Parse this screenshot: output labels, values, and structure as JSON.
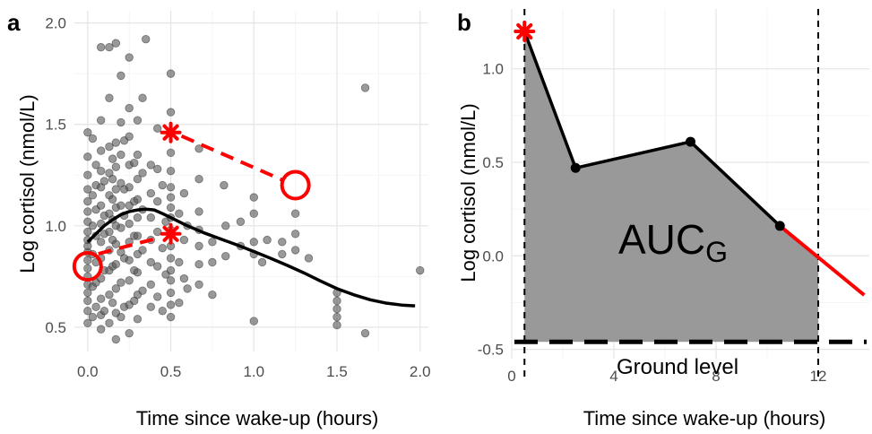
{
  "chart_data": [
    {
      "panel": "a",
      "type": "scatter",
      "xlabel": "Time since wake-up (hours)",
      "ylabel": "Log cortisol (nmol/L)",
      "xlim": [
        -0.08,
        2.05
      ],
      "ylim": [
        0.38,
        2.06
      ],
      "xticks": [
        0.0,
        0.5,
        1.0,
        1.5,
        2.0
      ],
      "xtick_labels": [
        "0.0",
        "0.5",
        "1.0",
        "1.5",
        "2.0"
      ],
      "yticks": [
        0.5,
        1.0,
        1.5,
        2.0
      ],
      "ytick_labels": [
        "0.5",
        "1.0",
        "1.5",
        "2.0"
      ],
      "grid": true,
      "point_color": "#555555",
      "curve_color": "#000000",
      "highlight_color": "#ff0000",
      "points": [
        [
          0.0,
          0.52
        ],
        [
          0.0,
          0.58
        ],
        [
          0.0,
          0.63
        ],
        [
          0.0,
          0.67
        ],
        [
          0.0,
          0.71
        ],
        [
          0.0,
          0.75
        ],
        [
          0.0,
          0.79
        ],
        [
          0.0,
          0.83
        ],
        [
          0.0,
          0.87
        ],
        [
          0.0,
          0.9
        ],
        [
          0.0,
          0.93
        ],
        [
          0.0,
          0.97
        ],
        [
          0.0,
          1.02
        ],
        [
          0.0,
          1.07
        ],
        [
          0.0,
          1.12
        ],
        [
          0.0,
          1.18
        ],
        [
          0.0,
          1.25
        ],
        [
          0.0,
          1.34
        ],
        [
          0.0,
          1.46
        ],
        [
          0.03,
          0.55
        ],
        [
          0.03,
          0.7
        ],
        [
          0.03,
          0.86
        ],
        [
          0.03,
          1.0
        ],
        [
          0.03,
          1.15
        ],
        [
          0.03,
          1.43
        ],
        [
          0.05,
          0.6
        ],
        [
          0.05,
          0.72
        ],
        [
          0.05,
          0.82
        ],
        [
          0.05,
          0.95
        ],
        [
          0.05,
          1.08
        ],
        [
          0.05,
          1.2
        ],
        [
          0.05,
          1.3
        ],
        [
          0.08,
          0.49
        ],
        [
          0.08,
          0.56
        ],
        [
          0.08,
          0.64
        ],
        [
          0.08,
          0.74
        ],
        [
          0.08,
          0.84
        ],
        [
          0.08,
          0.92
        ],
        [
          0.08,
          1.01
        ],
        [
          0.08,
          1.1
        ],
        [
          0.08,
          1.19
        ],
        [
          0.08,
          1.27
        ],
        [
          0.08,
          1.37
        ],
        [
          0.08,
          1.52
        ],
        [
          0.08,
          1.88
        ],
        [
          0.1,
          0.58
        ],
        [
          0.1,
          0.78
        ],
        [
          0.1,
          0.96
        ],
        [
          0.1,
          1.05
        ],
        [
          0.1,
          1.22
        ],
        [
          0.13,
          0.52
        ],
        [
          0.13,
          0.66
        ],
        [
          0.13,
          0.78
        ],
        [
          0.13,
          0.88
        ],
        [
          0.13,
          0.97
        ],
        [
          0.13,
          1.06
        ],
        [
          0.13,
          1.15
        ],
        [
          0.13,
          1.26
        ],
        [
          0.13,
          1.39
        ],
        [
          0.13,
          1.63
        ],
        [
          0.13,
          1.88
        ],
        [
          0.15,
          0.62
        ],
        [
          0.15,
          0.8
        ],
        [
          0.15,
          0.93
        ],
        [
          0.15,
          1.03
        ],
        [
          0.15,
          1.13
        ],
        [
          0.15,
          1.23
        ],
        [
          0.15,
          1.33
        ],
        [
          0.17,
          0.44
        ],
        [
          0.17,
          0.57
        ],
        [
          0.17,
          0.69
        ],
        [
          0.17,
          0.81
        ],
        [
          0.17,
          0.91
        ],
        [
          0.17,
          1.0
        ],
        [
          0.17,
          1.09
        ],
        [
          0.17,
          1.18
        ],
        [
          0.17,
          1.29
        ],
        [
          0.17,
          1.41
        ],
        [
          0.17,
          1.9
        ],
        [
          0.2,
          0.55
        ],
        [
          0.2,
          0.72
        ],
        [
          0.2,
          0.87
        ],
        [
          0.2,
          0.99
        ],
        [
          0.2,
          1.1
        ],
        [
          0.2,
          1.21
        ],
        [
          0.2,
          1.35
        ],
        [
          0.2,
          1.51
        ],
        [
          0.2,
          1.74
        ],
        [
          0.22,
          0.6
        ],
        [
          0.22,
          0.84
        ],
        [
          0.22,
          1.05
        ],
        [
          0.22,
          1.18
        ],
        [
          0.22,
          1.42
        ],
        [
          0.25,
          0.47
        ],
        [
          0.25,
          0.61
        ],
        [
          0.25,
          0.73
        ],
        [
          0.25,
          0.83
        ],
        [
          0.25,
          0.92
        ],
        [
          0.25,
          1.01
        ],
        [
          0.25,
          1.1
        ],
        [
          0.25,
          1.19
        ],
        [
          0.25,
          1.3
        ],
        [
          0.25,
          1.44
        ],
        [
          0.25,
          1.58
        ],
        [
          0.25,
          1.83
        ],
        [
          0.28,
          0.63
        ],
        [
          0.28,
          0.78
        ],
        [
          0.28,
          0.95
        ],
        [
          0.28,
          1.12
        ],
        [
          0.28,
          1.31
        ],
        [
          0.3,
          0.54
        ],
        [
          0.3,
          0.66
        ],
        [
          0.3,
          0.77
        ],
        [
          0.3,
          0.86
        ],
        [
          0.3,
          0.95
        ],
        [
          0.3,
          1.04
        ],
        [
          0.3,
          1.13
        ],
        [
          0.3,
          1.23
        ],
        [
          0.3,
          1.35
        ],
        [
          0.3,
          1.52
        ],
        [
          0.33,
          0.68
        ],
        [
          0.33,
          0.88
        ],
        [
          0.33,
          1.08
        ],
        [
          0.33,
          1.26
        ],
        [
          0.33,
          1.63
        ],
        [
          0.35,
          1.92
        ],
        [
          0.38,
          0.6
        ],
        [
          0.38,
          0.71
        ],
        [
          0.38,
          0.82
        ],
        [
          0.38,
          0.93
        ],
        [
          0.38,
          1.04
        ],
        [
          0.38,
          1.16
        ],
        [
          0.38,
          1.3
        ],
        [
          0.42,
          0.65
        ],
        [
          0.42,
          0.8
        ],
        [
          0.42,
          0.97
        ],
        [
          0.42,
          1.12
        ],
        [
          0.42,
          1.28
        ],
        [
          0.42,
          1.48
        ],
        [
          0.45,
          0.58
        ],
        [
          0.45,
          0.89
        ],
        [
          0.45,
          1.2
        ],
        [
          0.47,
          0.76
        ],
        [
          0.47,
          1.02
        ],
        [
          0.5,
          0.55
        ],
        [
          0.5,
          0.61
        ],
        [
          0.5,
          0.67
        ],
        [
          0.5,
          0.73
        ],
        [
          0.5,
          0.78
        ],
        [
          0.5,
          0.84
        ],
        [
          0.5,
          0.9
        ],
        [
          0.5,
          0.98
        ],
        [
          0.5,
          1.04
        ],
        [
          0.5,
          1.09
        ],
        [
          0.5,
          1.14
        ],
        [
          0.5,
          1.19
        ],
        [
          0.5,
          1.27
        ],
        [
          0.5,
          1.36
        ],
        [
          0.5,
          1.56
        ],
        [
          0.5,
          1.75
        ],
        [
          0.55,
          0.62
        ],
        [
          0.55,
          0.82
        ],
        [
          0.55,
          1.06
        ],
        [
          0.58,
          0.74
        ],
        [
          0.58,
          0.93
        ],
        [
          0.58,
          1.16
        ],
        [
          0.6,
          0.69
        ],
        [
          0.6,
          1.0
        ],
        [
          0.67,
          1.38
        ],
        [
          0.67,
          1.23
        ],
        [
          0.67,
          1.07
        ],
        [
          0.67,
          0.98
        ],
        [
          0.67,
          0.9
        ],
        [
          0.67,
          0.81
        ],
        [
          0.67,
          0.71
        ],
        [
          0.75,
          0.92
        ],
        [
          0.75,
          0.82
        ],
        [
          0.75,
          0.66
        ],
        [
          0.82,
          1.2
        ],
        [
          0.83,
          1.0
        ],
        [
          0.83,
          0.85
        ],
        [
          0.92,
          1.02
        ],
        [
          0.92,
          0.9
        ],
        [
          1.0,
          1.14
        ],
        [
          1.0,
          1.06
        ],
        [
          1.0,
          0.92
        ],
        [
          1.0,
          0.86
        ],
        [
          1.0,
          0.53
        ],
        [
          1.05,
          0.82
        ],
        [
          1.08,
          0.93
        ],
        [
          1.17,
          0.92
        ],
        [
          1.17,
          0.86
        ],
        [
          1.25,
          1.06
        ],
        [
          1.25,
          0.96
        ],
        [
          1.25,
          0.88
        ],
        [
          1.33,
          0.84
        ],
        [
          1.5,
          0.67
        ],
        [
          1.5,
          0.63
        ],
        [
          1.5,
          0.59
        ],
        [
          1.5,
          0.55
        ],
        [
          1.5,
          0.51
        ],
        [
          1.67,
          1.68
        ],
        [
          1.67,
          0.47
        ],
        [
          2.0,
          0.78
        ]
      ],
      "curve": [
        [
          0.0,
          0.92
        ],
        [
          0.05,
          0.96
        ],
        [
          0.1,
          1.0
        ],
        [
          0.15,
          1.03
        ],
        [
          0.2,
          1.055
        ],
        [
          0.25,
          1.07
        ],
        [
          0.3,
          1.078
        ],
        [
          0.35,
          1.082
        ],
        [
          0.4,
          1.078
        ],
        [
          0.45,
          1.06
        ],
        [
          0.5,
          1.04
        ],
        [
          0.6,
          1.0
        ],
        [
          0.7,
          0.965
        ],
        [
          0.8,
          0.935
        ],
        [
          0.9,
          0.905
        ],
        [
          1.0,
          0.873
        ],
        [
          1.1,
          0.84
        ],
        [
          1.2,
          0.805
        ],
        [
          1.3,
          0.768
        ],
        [
          1.4,
          0.728
        ],
        [
          1.5,
          0.69
        ],
        [
          1.6,
          0.66
        ],
        [
          1.7,
          0.635
        ],
        [
          1.8,
          0.618
        ],
        [
          1.9,
          0.608
        ],
        [
          1.97,
          0.605
        ]
      ],
      "highlight_lower": {
        "circle": [
          0.0,
          0.8
        ],
        "star": [
          0.5,
          0.96
        ]
      },
      "highlight_upper": {
        "star": [
          0.5,
          1.46
        ],
        "circle": [
          1.25,
          1.2
        ]
      }
    },
    {
      "panel": "b",
      "type": "area",
      "xlabel": "Time since wake-up (hours)",
      "ylabel": "Log cortisol (nmol/L)",
      "xlim": [
        0,
        14
      ],
      "ylim": [
        -0.55,
        1.32
      ],
      "xticks": [
        0,
        4,
        8,
        12
      ],
      "xtick_labels": [
        "0",
        "4",
        "8",
        "12"
      ],
      "yticks": [
        -0.5,
        0.0,
        0.5,
        1.0
      ],
      "ytick_labels": [
        "-0.5",
        "0.0",
        "0.5",
        "1.0"
      ],
      "grid": true,
      "fill_color": "#999999",
      "line_color": "#000000",
      "extrapolation_color": "#ff0000",
      "points": [
        [
          0.5,
          1.2
        ],
        [
          2.5,
          0.47
        ],
        [
          7.0,
          0.61
        ],
        [
          10.5,
          0.16
        ]
      ],
      "extrapolation_to": [
        13.8,
        -0.21
      ],
      "area_end_x": 12,
      "ground_level": -0.46,
      "vlines": [
        0.5,
        12
      ],
      "area_label": "AUC",
      "area_label_subscript": "G",
      "ground_label": "Ground level"
    }
  ]
}
